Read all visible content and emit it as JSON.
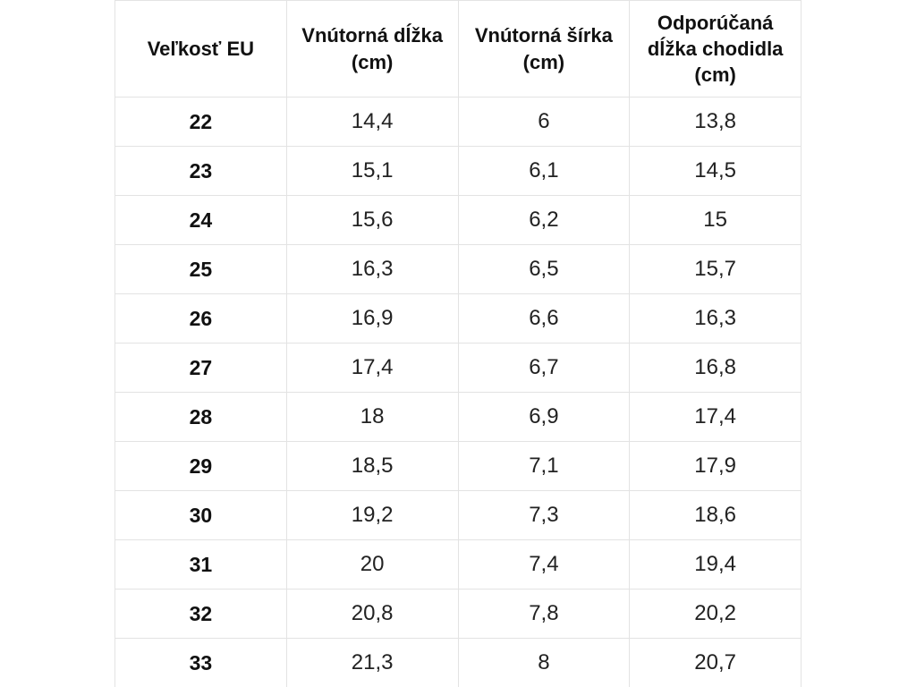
{
  "table": {
    "headers": [
      "Veľkosť EU",
      "Vnútorná dĺžka (cm)",
      "Vnútorná šírka (cm)",
      "Odporúčaná dĺžka chodidla (cm)"
    ],
    "rows": [
      [
        "22",
        "14,4",
        "6",
        "13,8"
      ],
      [
        "23",
        "15,1",
        "6,1",
        "14,5"
      ],
      [
        "24",
        "15,6",
        "6,2",
        "15"
      ],
      [
        "25",
        "16,3",
        "6,5",
        "15,7"
      ],
      [
        "26",
        "16,9",
        "6,6",
        "16,3"
      ],
      [
        "27",
        "17,4",
        "6,7",
        "16,8"
      ],
      [
        "28",
        "18",
        "6,9",
        "17,4"
      ],
      [
        "29",
        "18,5",
        "7,1",
        "17,9"
      ],
      [
        "30",
        "19,2",
        "7,3",
        "18,6"
      ],
      [
        "31",
        "20",
        "7,4",
        "19,4"
      ],
      [
        "32",
        "20,8",
        "7,8",
        "20,2"
      ],
      [
        "33",
        "21,3",
        "8",
        "20,7"
      ]
    ]
  },
  "chart_data": {
    "type": "table",
    "title": "",
    "columns": [
      "Veľkosť EU",
      "Vnútorná dĺžka (cm)",
      "Vnútorná šírka (cm)",
      "Odporúčaná dĺžka chodidla (cm)"
    ],
    "rows": [
      [
        22,
        14.4,
        6.0,
        13.8
      ],
      [
        23,
        15.1,
        6.1,
        14.5
      ],
      [
        24,
        15.6,
        6.2,
        15.0
      ],
      [
        25,
        16.3,
        6.5,
        15.7
      ],
      [
        26,
        16.9,
        6.6,
        16.3
      ],
      [
        27,
        17.4,
        6.7,
        16.8
      ],
      [
        28,
        18.0,
        6.9,
        17.4
      ],
      [
        29,
        18.5,
        7.1,
        17.9
      ],
      [
        30,
        19.2,
        7.3,
        18.6
      ],
      [
        31,
        20.0,
        7.4,
        19.4
      ],
      [
        32,
        20.8,
        7.8,
        20.2
      ],
      [
        33,
        21.3,
        8.0,
        20.7
      ]
    ],
    "decimal_separator": ",",
    "layout_hints": {
      "grid": true,
      "header_bold": true,
      "first_column_bold": true,
      "text_align": "center"
    }
  },
  "colors": {
    "background": "#ffffff",
    "border": "#e3e3e3",
    "header_text": "#111111",
    "cell_text": "#222222"
  }
}
